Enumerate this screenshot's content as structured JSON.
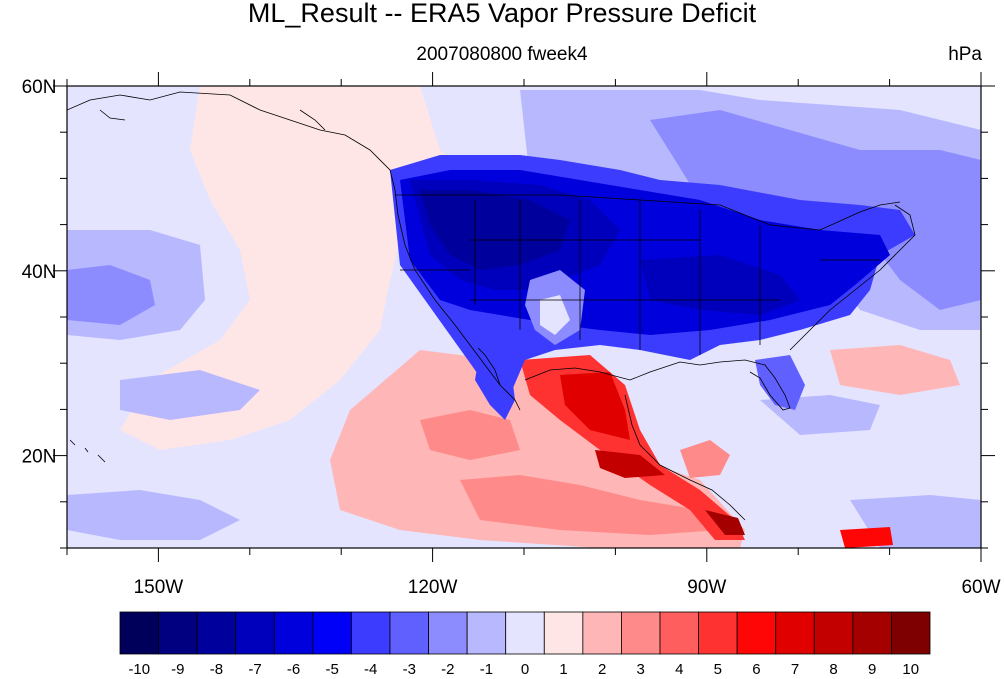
{
  "title": "ML_Result -- ERA5 Vapor Pressure Deficit",
  "subtitle": "2007080800 fweek4",
  "units": "hPa",
  "map": {
    "lon_range": [
      -160,
      -60
    ],
    "lat_range": [
      10,
      60
    ],
    "lon_ticks": [
      {
        "value": -150,
        "label": "150W"
      },
      {
        "value": -120,
        "label": "120W"
      },
      {
        "value": -90,
        "label": "90W"
      },
      {
        "value": -60,
        "label": "60W"
      }
    ],
    "lat_ticks": [
      {
        "value": 60,
        "label": "60N"
      },
      {
        "value": 40,
        "label": "40N"
      },
      {
        "value": 20,
        "label": "20N"
      }
    ]
  },
  "colorbar": {
    "labels": [
      "-10",
      "-9",
      "-8",
      "-7",
      "-6",
      "-5",
      "-4",
      "-3",
      "-2",
      "-1",
      "0",
      "1",
      "2",
      "3",
      "4",
      "5",
      "6",
      "7",
      "8",
      "9",
      "10"
    ],
    "colors": [
      "#00005a",
      "#000080",
      "#00009c",
      "#0000bc",
      "#0000dc",
      "#0000f8",
      "#3c3cff",
      "#6060ff",
      "#8c8cff",
      "#b8b8ff",
      "#e4e4ff",
      "#ffe6e6",
      "#ffb6b6",
      "#ff8a8a",
      "#ff5e5e",
      "#ff3232",
      "#ff0606",
      "#e00000",
      "#c20000",
      "#a40000",
      "#7e0000"
    ]
  }
}
